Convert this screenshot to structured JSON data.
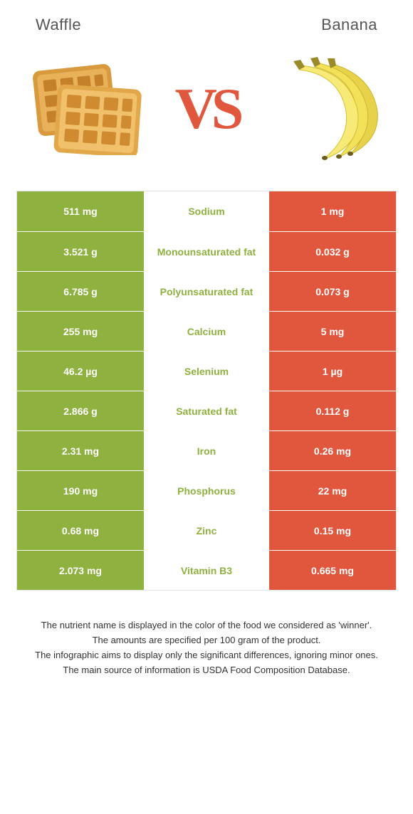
{
  "header": {
    "left_title": "Waffle",
    "right_title": "Banana"
  },
  "vs_label": "VS",
  "colors": {
    "left_bg": "#8eb13f",
    "right_bg": "#e1573e",
    "mid_winner_left": "#8eb13f",
    "mid_winner_right": "#e1573e",
    "row_border": "#ffffff",
    "table_border": "#dfe3e6",
    "vs_text": "#e1573e"
  },
  "rows": [
    {
      "label": "Sodium",
      "left": "511 mg",
      "right": "1 mg",
      "winner": "left"
    },
    {
      "label": "Monounsaturated fat",
      "left": "3.521 g",
      "right": "0.032 g",
      "winner": "left"
    },
    {
      "label": "Polyunsaturated fat",
      "left": "6.785 g",
      "right": "0.073 g",
      "winner": "left"
    },
    {
      "label": "Calcium",
      "left": "255 mg",
      "right": "5 mg",
      "winner": "left"
    },
    {
      "label": "Selenium",
      "left": "46.2 µg",
      "right": "1 µg",
      "winner": "left"
    },
    {
      "label": "Saturated fat",
      "left": "2.866 g",
      "right": "0.112 g",
      "winner": "left"
    },
    {
      "label": "Iron",
      "left": "2.31 mg",
      "right": "0.26 mg",
      "winner": "left"
    },
    {
      "label": "Phosphorus",
      "left": "190 mg",
      "right": "22 mg",
      "winner": "left"
    },
    {
      "label": "Zinc",
      "left": "0.68 mg",
      "right": "0.15 mg",
      "winner": "left"
    },
    {
      "label": "Vitamin B3",
      "left": "2.073 mg",
      "right": "0.665 mg",
      "winner": "left"
    }
  ],
  "footnotes": [
    "The nutrient name is displayed in the color of the food we considered as 'winner'.",
    "The amounts are specified per 100 gram of the product.",
    "The infographic aims to display only the significant differences, ignoring minor ones.",
    "The main source of information is USDA Food Composition Database."
  ]
}
